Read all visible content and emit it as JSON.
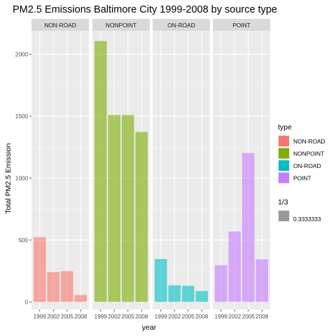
{
  "chart_data": {
    "type": "bar",
    "title": "PM2.5 Emissions Baltimore City 1999-2008 by source type",
    "xlabel": "year",
    "ylabel": "Total PM2.5 Emission",
    "x_ticks": [
      "1999",
      "2002",
      "2005",
      "2008"
    ],
    "y_ticks": [
      0,
      500,
      1000,
      1500,
      2000
    ],
    "ylim": [
      -60,
      2190
    ],
    "grid": true,
    "facet_by": "type",
    "facets": [
      {
        "name": "NON-ROAD",
        "color": "#F8766D",
        "values": [
          522.9,
          241.2,
          248.9,
          55.8
        ]
      },
      {
        "name": "NONPOINT",
        "color": "#7CAE00",
        "values": [
          2107.6,
          1509.5,
          1509.5,
          1373.2
        ]
      },
      {
        "name": "ON-ROAD",
        "color": "#00BFC4",
        "values": [
          346.8,
          134.3,
          130.4,
          88.3
        ]
      },
      {
        "name": "POINT",
        "color": "#C77CFF",
        "values": [
          296.8,
          569.3,
          1202.5,
          344.0
        ]
      }
    ],
    "bar_alpha": 0.3333333,
    "legend": {
      "position": "right",
      "type_title": "type",
      "alpha_title": "1/3",
      "alpha_label": "0.3333333",
      "alpha_swatch_color": "#999999"
    }
  }
}
